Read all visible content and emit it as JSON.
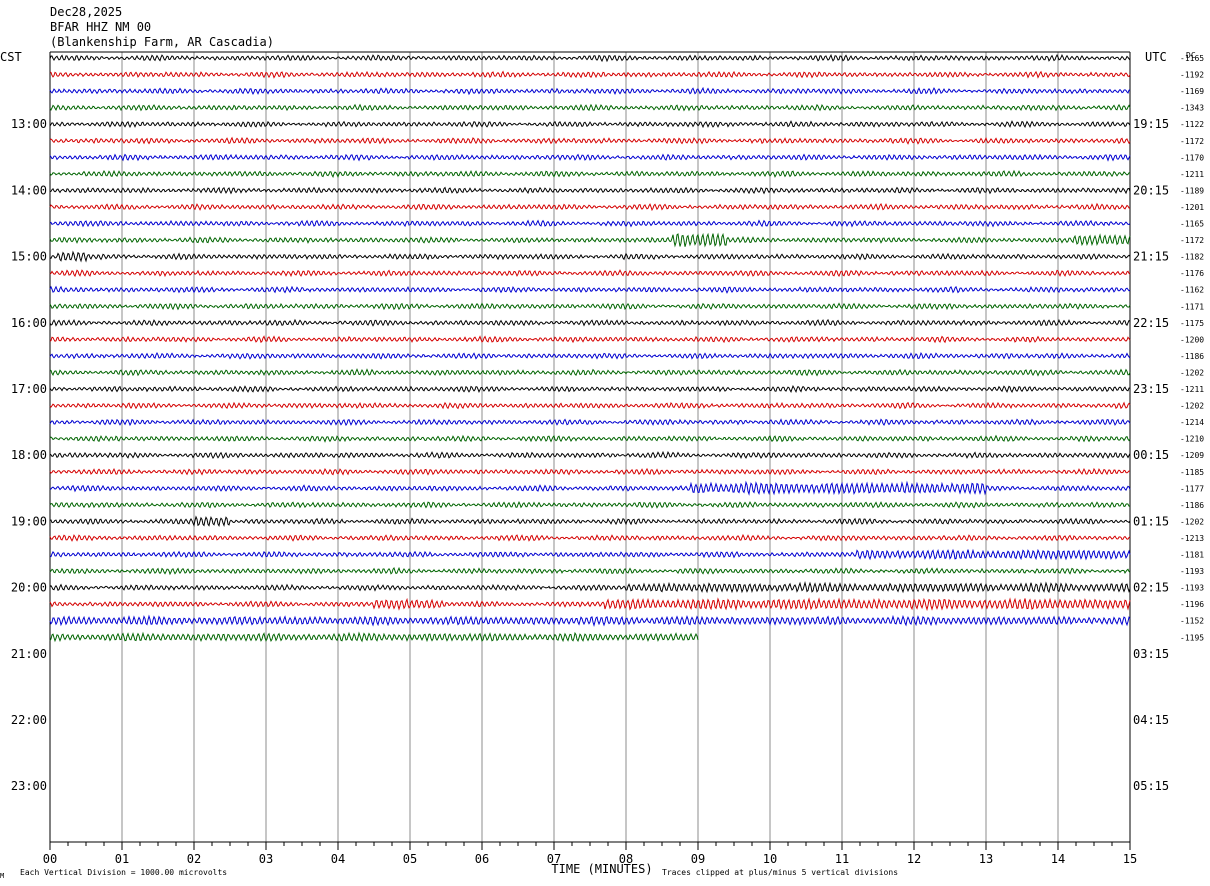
{
  "header": {
    "date": "Dec28,2025",
    "station": "BFAR HHZ NM 00",
    "location": "(Blankenship Farm, AR Cascadia)"
  },
  "left_timezone": "CST",
  "right_timezone": "UTC",
  "dc_label": "DC",
  "footer": {
    "mark": "M",
    "vertical_division": "Each Vertical Division = 1000.00 microvolts",
    "xlabel": "TIME (MINUTES)",
    "clipping": "Traces clipped at plus/minus 5 vertical divisions"
  },
  "colors": {
    "trace_cycle": [
      "#000000",
      "#d40000",
      "#0000d0",
      "#006400"
    ],
    "grid": "#8c8c8c",
    "axis": "#000000",
    "background": "#ffffff"
  },
  "chart_data": {
    "type": "line",
    "title": "",
    "xlabel": "TIME (MINUTES)",
    "ylabel": "",
    "xlim": [
      0,
      15
    ],
    "x_ticks": [
      "00",
      "01",
      "02",
      "03",
      "04",
      "05",
      "06",
      "07",
      "08",
      "09",
      "10",
      "11",
      "12",
      "13",
      "14",
      "15"
    ],
    "minutes_per_trace": 15,
    "hour_labels_left": [
      "13:00",
      "14:00",
      "15:00",
      "16:00",
      "17:00",
      "18:00",
      "19:00",
      "20:00",
      "21:00",
      "22:00",
      "23:00"
    ],
    "hour_labels_right": [
      "19:15",
      "20:15",
      "21:15",
      "22:15",
      "23:15",
      "00:15",
      "01:15",
      "02:15",
      "03:15",
      "04:15",
      "05:15"
    ],
    "dc_offsets": [
      "-1165",
      "-1192",
      "-1169",
      "-1343",
      "-1122",
      "-1172",
      "-1170",
      "-1211",
      "-1189",
      "-1201",
      "-1165",
      "-1172",
      "-1182",
      "-1176",
      "-1162",
      "-1171",
      "-1175",
      "-1200",
      "-1186",
      "-1202",
      "-1211",
      "-1202",
      "-1214",
      "-1210",
      "-1209",
      "-1185",
      "-1177",
      "-1186",
      "-1202",
      "-1213",
      "-1181",
      "-1193",
      "-1193",
      "-1196",
      "-1152",
      "-1195"
    ],
    "series": [
      {
        "row": 0,
        "end_minute": 15,
        "events": []
      },
      {
        "row": 1,
        "end_minute": 15,
        "events": []
      },
      {
        "row": 2,
        "end_minute": 15,
        "events": []
      },
      {
        "row": 3,
        "end_minute": 15,
        "events": []
      },
      {
        "row": 4,
        "end_minute": 15,
        "events": []
      },
      {
        "row": 5,
        "end_minute": 15,
        "events": []
      },
      {
        "row": 6,
        "end_minute": 15,
        "events": []
      },
      {
        "row": 7,
        "end_minute": 15,
        "events": []
      },
      {
        "row": 8,
        "end_minute": 15,
        "events": []
      },
      {
        "row": 9,
        "end_minute": 15,
        "events": []
      },
      {
        "row": 10,
        "end_minute": 15,
        "events": []
      },
      {
        "row": 11,
        "end_minute": 15,
        "events": [
          {
            "start": 8.65,
            "end": 9.4,
            "amp": 5.5
          },
          {
            "start": 14.2,
            "end": 15,
            "amp": 3
          }
        ]
      },
      {
        "row": 12,
        "end_minute": 15,
        "events": [
          {
            "start": 0.1,
            "end": 0.5,
            "amp": 3
          }
        ]
      },
      {
        "row": 13,
        "end_minute": 15,
        "events": []
      },
      {
        "row": 14,
        "end_minute": 15,
        "events": []
      },
      {
        "row": 15,
        "end_minute": 15,
        "events": []
      },
      {
        "row": 16,
        "end_minute": 15,
        "events": []
      },
      {
        "row": 17,
        "end_minute": 15,
        "events": []
      },
      {
        "row": 18,
        "end_minute": 15,
        "events": []
      },
      {
        "row": 19,
        "end_minute": 15,
        "events": []
      },
      {
        "row": 20,
        "end_minute": 15,
        "events": []
      },
      {
        "row": 21,
        "end_minute": 15,
        "events": []
      },
      {
        "row": 22,
        "end_minute": 15,
        "events": []
      },
      {
        "row": 23,
        "end_minute": 15,
        "events": []
      },
      {
        "row": 24,
        "end_minute": 15,
        "events": []
      },
      {
        "row": 25,
        "end_minute": 15,
        "events": []
      },
      {
        "row": 26,
        "end_minute": 15,
        "events": [
          {
            "start": 8.9,
            "end": 13.0,
            "amp": 3.5
          }
        ]
      },
      {
        "row": 27,
        "end_minute": 15,
        "events": []
      },
      {
        "row": 28,
        "end_minute": 15,
        "events": [
          {
            "start": 2.0,
            "end": 2.5,
            "amp": 3
          }
        ]
      },
      {
        "row": 29,
        "end_minute": 15,
        "events": []
      },
      {
        "row": 30,
        "end_minute": 15,
        "events": [
          {
            "start": 11.2,
            "end": 15,
            "amp": 2.5
          }
        ]
      },
      {
        "row": 31,
        "end_minute": 15,
        "events": []
      },
      {
        "row": 32,
        "end_minute": 15,
        "events": [
          {
            "start": 8.0,
            "end": 15,
            "amp": 2.2
          }
        ]
      },
      {
        "row": 33,
        "end_minute": 15,
        "events": [
          {
            "start": 4.5,
            "end": 5.5,
            "amp": 2.5
          },
          {
            "start": 7.7,
            "end": 15,
            "amp": 3
          }
        ]
      },
      {
        "row": 34,
        "end_minute": 15,
        "events": [
          {
            "start": 0,
            "end": 15,
            "amp": 1.8
          }
        ]
      },
      {
        "row": 35,
        "end_minute": 9.0,
        "events": [
          {
            "start": 0,
            "end": 9.0,
            "amp": 1.5
          }
        ]
      }
    ]
  }
}
